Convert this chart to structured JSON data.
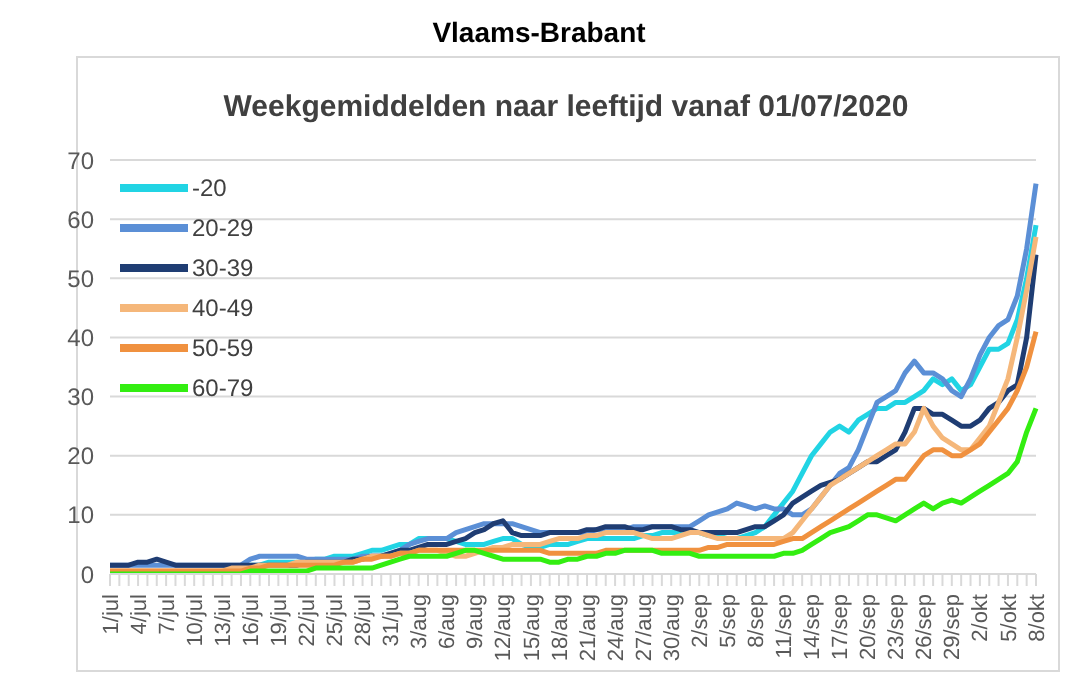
{
  "chart_data": {
    "type": "line",
    "title": "Vlaams-Brabant",
    "subtitle": "Weekgemiddelden naar leeftijd vanaf 01/07/2020",
    "categories": [
      "1/jul",
      null,
      null,
      "4/jul",
      null,
      null,
      "7/jul",
      null,
      null,
      "10/jul",
      null,
      null,
      "13/jul",
      null,
      null,
      "16/jul",
      null,
      null,
      "19/jul",
      null,
      null,
      "22/jul",
      null,
      null,
      "25/jul",
      null,
      null,
      "28/jul",
      null,
      null,
      "31/jul",
      null,
      null,
      "3/aug",
      null,
      null,
      "6/aug",
      null,
      null,
      "9/aug",
      null,
      null,
      "12/aug",
      null,
      null,
      "15/aug",
      null,
      null,
      "18/aug",
      null,
      null,
      "21/aug",
      null,
      null,
      "24/aug",
      null,
      null,
      "27/aug",
      null,
      null,
      "30/aug",
      null,
      null,
      "2/sep",
      null,
      null,
      "5/sep",
      null,
      null,
      "8/sep",
      null,
      null,
      "11/sep",
      null,
      null,
      "14/sep",
      null,
      null,
      "17/sep",
      null,
      null,
      "20/sep",
      null,
      null,
      "23/sep",
      null,
      null,
      "26/sep",
      null,
      null,
      "29/sep",
      null,
      null,
      "2/okt",
      null,
      null,
      "5/okt",
      null,
      null,
      "8/okt"
    ],
    "series": [
      {
        "name": "-20",
        "color": "#21d4e4",
        "values": [
          null,
          null,
          null,
          null,
          null,
          null,
          null,
          null,
          null,
          null,
          null,
          null,
          null,
          null,
          null,
          1.5,
          1.5,
          2,
          2,
          2,
          2,
          2,
          2.5,
          2.5,
          3,
          3,
          3,
          3.5,
          4,
          4,
          4.5,
          5,
          5,
          6,
          6,
          6,
          6,
          5.5,
          5,
          5,
          5,
          5.5,
          6,
          6,
          5,
          4.5,
          4.5,
          5,
          5,
          5,
          5.5,
          6,
          6,
          6,
          6,
          6,
          6,
          6.5,
          6.5,
          7,
          7,
          7,
          7,
          7,
          6.5,
          6.5,
          6,
          6,
          6.5,
          7,
          8,
          10,
          12,
          14,
          17,
          20,
          22,
          24,
          25,
          24,
          26,
          27,
          28,
          28,
          29,
          29,
          30,
          31,
          33,
          32,
          33,
          31,
          32,
          35,
          38,
          38,
          39,
          43,
          50,
          59
        ]
      },
      {
        "name": "20-29",
        "color": "#5b8fd6",
        "values": [
          1.5,
          1.5,
          1.5,
          1.5,
          1.5,
          1.5,
          1.5,
          1.5,
          1.5,
          1.5,
          1.5,
          1.5,
          1.5,
          1.5,
          1.5,
          2.5,
          3,
          3,
          3,
          3,
          3,
          2.5,
          2.5,
          2.5,
          2.5,
          2.5,
          2.5,
          3,
          3,
          3,
          3.5,
          4,
          5,
          5.5,
          6,
          6,
          6,
          7,
          7.5,
          8,
          8.5,
          8.5,
          8.5,
          8.5,
          8,
          7.5,
          7,
          7,
          7,
          7,
          7,
          7,
          7.5,
          7.5,
          7.5,
          7.5,
          8,
          8,
          8,
          8,
          8,
          8,
          8,
          9,
          10,
          10.5,
          11,
          12,
          11.5,
          11,
          11.5,
          11,
          11,
          10,
          10,
          11,
          13,
          15,
          17,
          18,
          21,
          25,
          29,
          30,
          31,
          34,
          36,
          34,
          34,
          33,
          31,
          30,
          33,
          37,
          40,
          42,
          43,
          47,
          55,
          66
        ]
      },
      {
        "name": "30-39",
        "color": "#1f3d73",
        "values": [
          1.5,
          1.5,
          1.5,
          2,
          2,
          2.5,
          2,
          1.5,
          1.5,
          1.5,
          1.5,
          1.5,
          1.5,
          1.5,
          1.5,
          1.5,
          1.5,
          1.5,
          1.5,
          1.5,
          1.5,
          2,
          2,
          2,
          2,
          2,
          2.5,
          2.5,
          3,
          3,
          3.5,
          4,
          4,
          4.5,
          5,
          5,
          5,
          5.5,
          6,
          7,
          7.5,
          8.5,
          9,
          7,
          6.5,
          6.5,
          6.5,
          7,
          7,
          7,
          7,
          7.5,
          7.5,
          8,
          8,
          8,
          7.5,
          7.5,
          8,
          8,
          8,
          7.5,
          7.5,
          7,
          7,
          7,
          7,
          7,
          7.5,
          8,
          8,
          9,
          10,
          12,
          13,
          14,
          15,
          15.5,
          16,
          17,
          18,
          19,
          19,
          20,
          21,
          24,
          28,
          28,
          27,
          27,
          26,
          25,
          25,
          26,
          28,
          29,
          31,
          32,
          40,
          54
        ]
      },
      {
        "name": "40-49",
        "color": "#f5b77a",
        "values": [
          0.5,
          0.5,
          0.5,
          0.5,
          0.5,
          0.5,
          0.5,
          0.5,
          0.5,
          0.5,
          0.5,
          0.5,
          0.5,
          1,
          1,
          1,
          1.5,
          1.5,
          1.5,
          1.5,
          2,
          2,
          2,
          2,
          2,
          2,
          2,
          2.5,
          3,
          3,
          3,
          3.5,
          3.5,
          4,
          4,
          4,
          3.5,
          3,
          3,
          3.5,
          4,
          4.5,
          4.5,
          5,
          5,
          5,
          5,
          5.5,
          6,
          6,
          6,
          6.5,
          6.5,
          7,
          7,
          7,
          7,
          6.5,
          6,
          6,
          6,
          6.5,
          7,
          7,
          6.5,
          6,
          6,
          6,
          6,
          6,
          6,
          6,
          6,
          7,
          9,
          11,
          13,
          15,
          16,
          17,
          18,
          19,
          20,
          21,
          22,
          22,
          24,
          28,
          25,
          23,
          22,
          21,
          21,
          23,
          25,
          29,
          33,
          40,
          48,
          57
        ]
      },
      {
        "name": "50-59",
        "color": "#f0913f",
        "values": [
          0.5,
          0.5,
          0.5,
          0.5,
          0.5,
          0.5,
          0.5,
          0.5,
          0.5,
          0.5,
          0.5,
          0.5,
          0.5,
          0.5,
          0.5,
          1,
          1,
          1.5,
          1.5,
          1.5,
          1.5,
          1.5,
          1.5,
          1.5,
          1.5,
          2,
          2,
          2.5,
          2.5,
          3,
          3,
          3.5,
          3.5,
          4,
          4,
          4,
          4,
          4,
          4,
          4,
          4,
          4,
          4,
          4,
          4,
          4,
          4,
          3.5,
          3.5,
          3.5,
          3.5,
          3.5,
          3.5,
          4,
          4,
          4,
          4,
          4,
          4,
          4,
          4,
          4,
          4,
          4,
          4.5,
          4.5,
          5,
          5,
          5,
          5,
          5,
          5,
          5.5,
          6,
          6,
          7,
          8,
          9,
          10,
          11,
          12,
          13,
          14,
          15,
          16,
          16,
          18,
          20,
          21,
          21,
          20,
          20,
          21,
          22,
          24,
          26,
          28,
          31,
          35,
          41
        ]
      },
      {
        "name": "60-79",
        "color": "#33ee11",
        "values": [
          0,
          0,
          0,
          0,
          0,
          0,
          0,
          0,
          0,
          0,
          0,
          0,
          0,
          0,
          0,
          0.5,
          0.5,
          0.5,
          0.5,
          0.5,
          0.5,
          0.5,
          1,
          1,
          1,
          1,
          1,
          1,
          1,
          1.5,
          2,
          2.5,
          3,
          3,
          3,
          3,
          3,
          3.5,
          4,
          4,
          3.5,
          3,
          2.5,
          2.5,
          2.5,
          2.5,
          2.5,
          2,
          2,
          2.5,
          2.5,
          3,
          3,
          3.5,
          3.5,
          4,
          4,
          4,
          4,
          3.5,
          3.5,
          3.5,
          3.5,
          3,
          3,
          3,
          3,
          3,
          3,
          3,
          3,
          3,
          3.5,
          3.5,
          4,
          5,
          6,
          7,
          7.5,
          8,
          9,
          10,
          10,
          9.5,
          9,
          10,
          11,
          12,
          11,
          12,
          12.5,
          12,
          13,
          14,
          15,
          16,
          17,
          19,
          24,
          28
        ]
      }
    ],
    "ylim": [
      0,
      70
    ],
    "yticks": [
      0,
      10,
      20,
      30,
      40,
      50,
      60,
      70
    ],
    "grid": "y",
    "legend": "top left"
  }
}
